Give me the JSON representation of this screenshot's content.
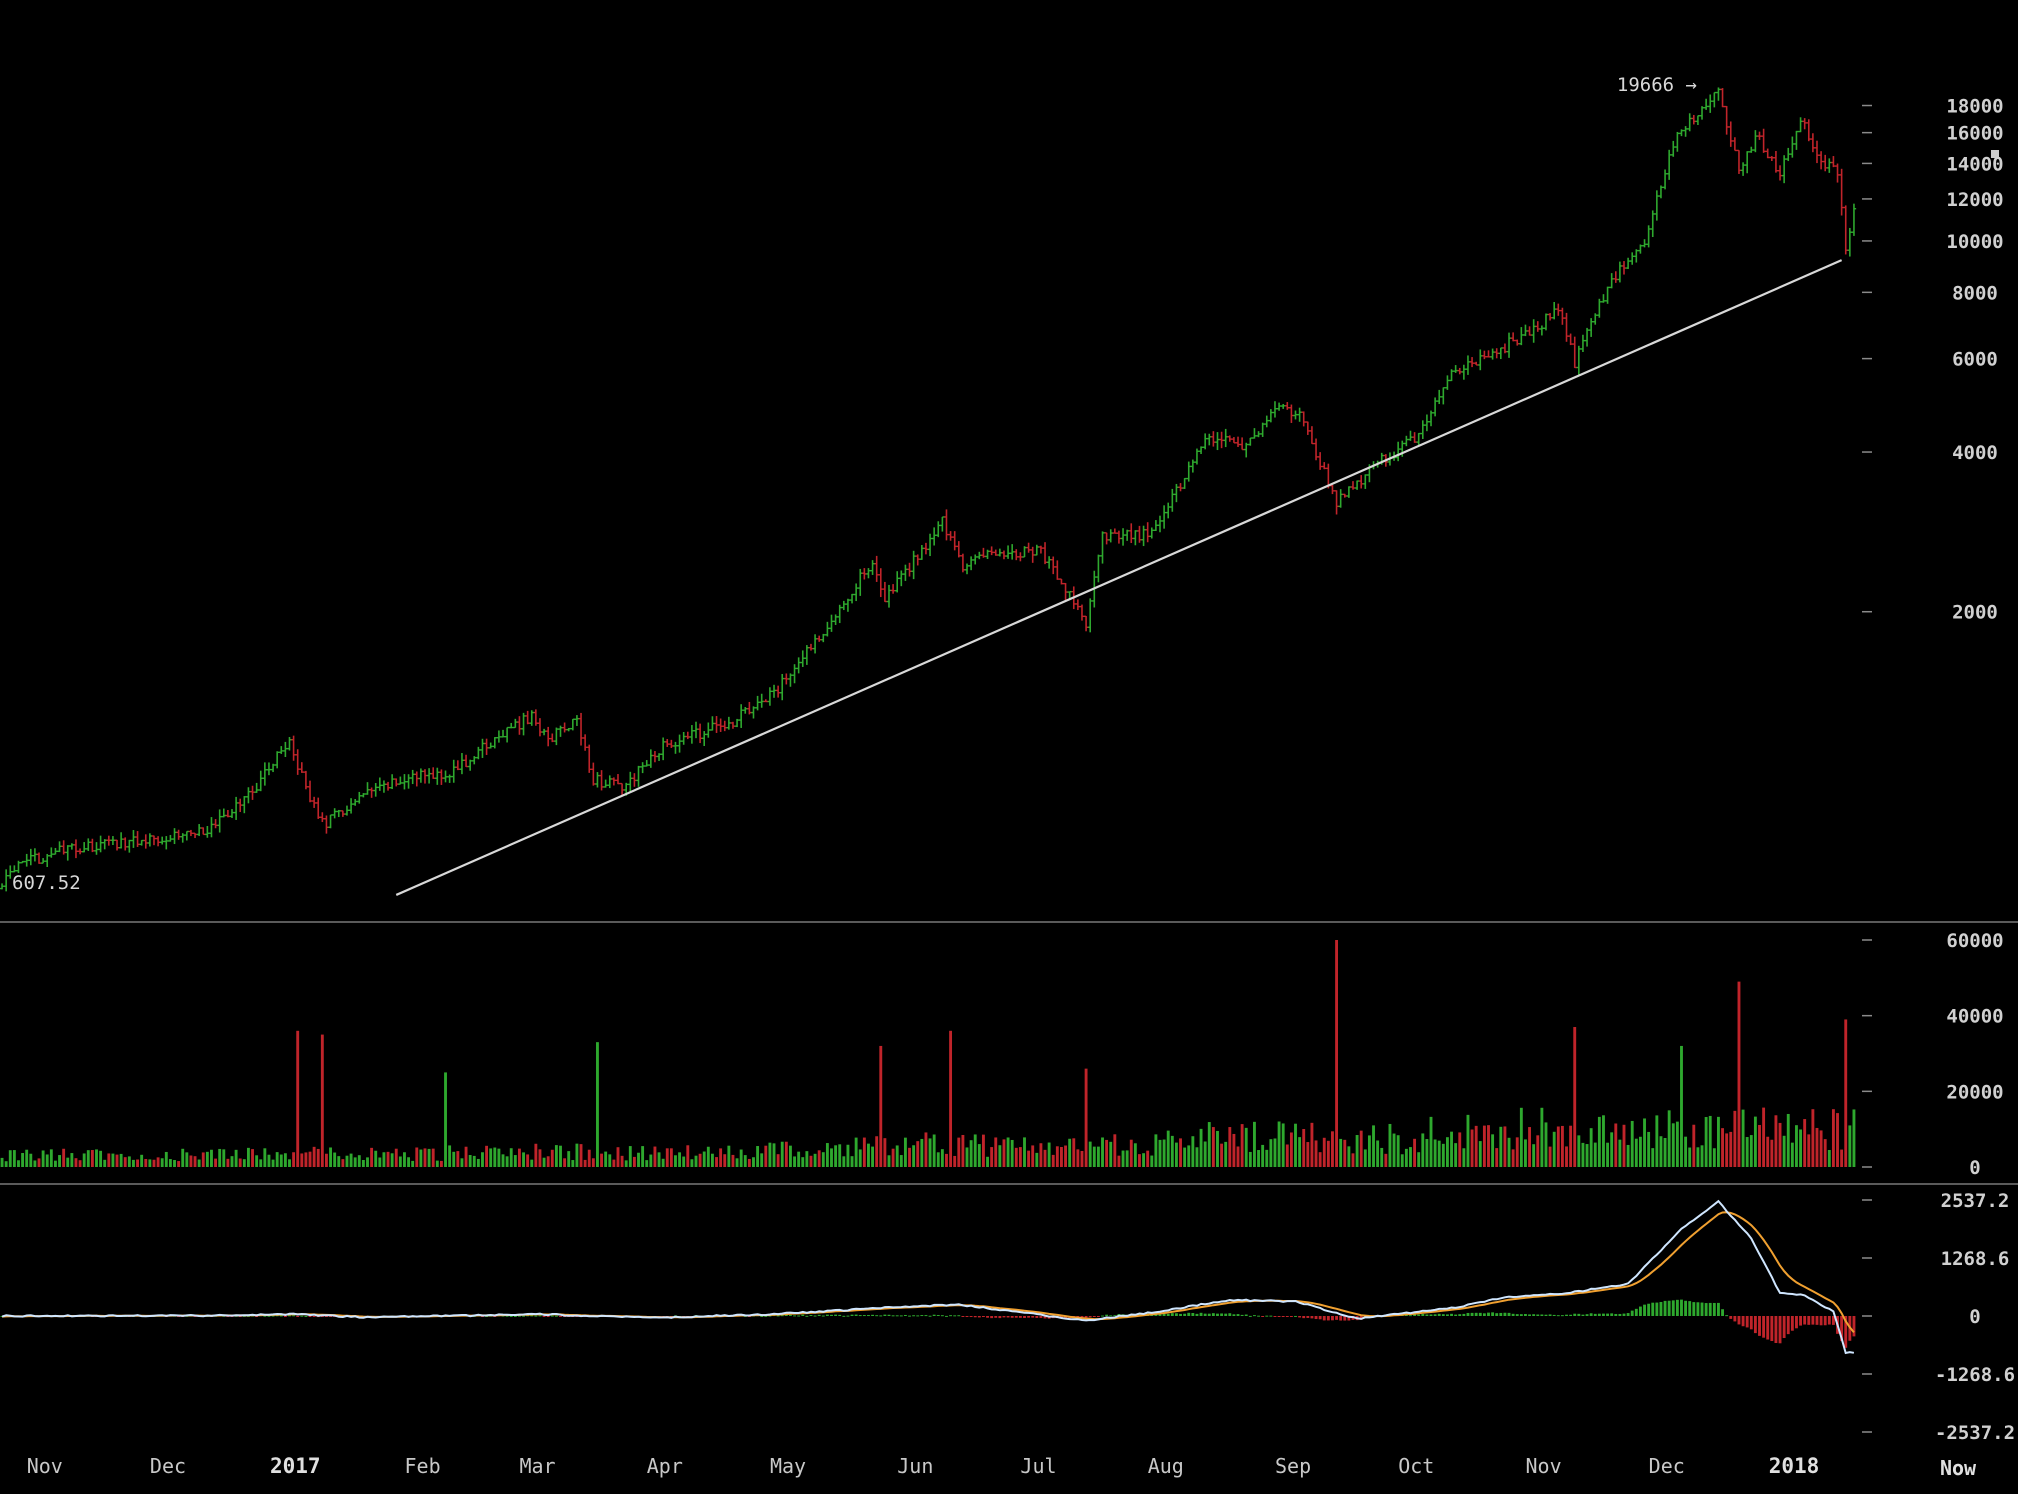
{
  "chart_data": {
    "type": "candlestick",
    "colors": {
      "background": "#000000",
      "up": "#2ea82e",
      "down": "#c0242a",
      "trendline": "#d8d8d8",
      "macd_line": "#cfe6ff",
      "signal_line": "#f0a030",
      "separator": "#5a5a5a",
      "tick": "#8a8a8a"
    },
    "price": {
      "scale": "log",
      "ylim": [
        560,
        21000
      ],
      "ticks": [
        "18000",
        "16000",
        "14000",
        "12000",
        "10000",
        "8000",
        "6000",
        "4000",
        "2000"
      ],
      "high_annotation": "19666 →",
      "start_annotation": "607.52",
      "high_value": 19666,
      "start_value": 607.52,
      "trendline": {
        "from": [
          "2017-01-29",
          585
        ],
        "to": [
          "2018-01-16",
          9200
        ]
      },
      "anchors": [
        [
          "2016-10-25",
          640
        ],
        [
          "2016-11-05",
          700
        ],
        [
          "2016-11-20",
          730
        ],
        [
          "2016-12-01",
          750
        ],
        [
          "2016-12-15",
          780
        ],
        [
          "2016-12-24",
          900
        ],
        [
          "2017-01-03",
          1150
        ],
        [
          "2017-01-08",
          880
        ],
        [
          "2017-01-12",
          800
        ],
        [
          "2017-01-20",
          890
        ],
        [
          "2017-01-31",
          970
        ],
        [
          "2017-02-12",
          1000
        ],
        [
          "2017-02-24",
          1180
        ],
        [
          "2017-03-03",
          1270
        ],
        [
          "2017-03-07",
          1150
        ],
        [
          "2017-03-14",
          1250
        ],
        [
          "2017-03-18",
          970
        ],
        [
          "2017-03-25",
          930
        ],
        [
          "2017-04-05",
          1130
        ],
        [
          "2017-04-20",
          1230
        ],
        [
          "2017-05-01",
          1400
        ],
        [
          "2017-05-12",
          1800
        ],
        [
          "2017-05-25",
          2500
        ],
        [
          "2017-05-28",
          2100
        ],
        [
          "2017-06-11",
          2950
        ],
        [
          "2017-06-16",
          2450
        ],
        [
          "2017-06-25",
          2600
        ],
        [
          "2017-07-05",
          2600
        ],
        [
          "2017-07-16",
          1900
        ],
        [
          "2017-07-20",
          2750
        ],
        [
          "2017-08-01",
          2800
        ],
        [
          "2017-08-13",
          4100
        ],
        [
          "2017-08-17",
          4300
        ],
        [
          "2017-08-24",
          4100
        ],
        [
          "2017-09-01",
          4900
        ],
        [
          "2017-09-07",
          4600
        ],
        [
          "2017-09-15",
          3200
        ],
        [
          "2017-09-25",
          3800
        ],
        [
          "2017-10-05",
          4300
        ],
        [
          "2017-10-13",
          5600
        ],
        [
          "2017-10-20",
          6000
        ],
        [
          "2017-11-01",
          6700
        ],
        [
          "2017-11-08",
          7400
        ],
        [
          "2017-11-12",
          5900
        ],
        [
          "2017-11-20",
          8200
        ],
        [
          "2017-11-29",
          10000
        ],
        [
          "2017-12-07",
          16000
        ],
        [
          "2017-12-17",
          19000
        ],
        [
          "2017-12-22",
          13500
        ],
        [
          "2017-12-26",
          15800
        ],
        [
          "2018-01-01",
          13500
        ],
        [
          "2018-01-06",
          17000
        ],
        [
          "2018-01-12",
          13800
        ],
        [
          "2018-01-15",
          13600
        ],
        [
          "2018-01-17",
          9800
        ],
        [
          "2018-01-19",
          11500
        ]
      ]
    },
    "volume": {
      "ylim": [
        0,
        60000
      ],
      "ticks": [
        "60000",
        "40000",
        "20000",
        "0"
      ],
      "spikes": [
        [
          "2017-01-05",
          36000
        ],
        [
          "2017-01-11",
          35000
        ],
        [
          "2017-02-10",
          25000
        ],
        [
          "2017-03-19",
          33000
        ],
        [
          "2017-05-27",
          32000
        ],
        [
          "2017-06-13",
          36000
        ],
        [
          "2017-07-16",
          26000
        ],
        [
          "2017-09-15",
          60000
        ],
        [
          "2017-11-12",
          37000
        ],
        [
          "2017-12-08",
          32000
        ],
        [
          "2017-12-22",
          49000
        ],
        [
          "2018-01-17",
          39000
        ]
      ]
    },
    "macd": {
      "ylim": [
        -2537.2,
        2537.2
      ],
      "ticks": [
        "2537.2",
        "1268.6",
        "0",
        "-1268.6",
        "-2537.2"
      ],
      "anchors": [
        [
          "2016-10-25",
          0
        ],
        [
          "2016-12-20",
          10
        ],
        [
          "2017-01-05",
          40
        ],
        [
          "2017-01-20",
          -25
        ],
        [
          "2017-02-20",
          15
        ],
        [
          "2017-03-05",
          40
        ],
        [
          "2017-04-01",
          -40
        ],
        [
          "2017-05-01",
          40
        ],
        [
          "2017-06-01",
          200
        ],
        [
          "2017-06-15",
          250
        ],
        [
          "2017-07-16",
          -100
        ],
        [
          "2017-08-01",
          80
        ],
        [
          "2017-08-20",
          350
        ],
        [
          "2017-09-05",
          320
        ],
        [
          "2017-09-20",
          -60
        ],
        [
          "2017-10-15",
          200
        ],
        [
          "2017-10-25",
          400
        ],
        [
          "2017-11-10",
          500
        ],
        [
          "2017-11-25",
          700
        ],
        [
          "2017-12-08",
          1900
        ],
        [
          "2017-12-17",
          2500
        ],
        [
          "2017-12-25",
          1700
        ],
        [
          "2018-01-01",
          500
        ],
        [
          "2018-01-07",
          450
        ],
        [
          "2018-01-14",
          100
        ],
        [
          "2018-01-17",
          -800
        ]
      ]
    },
    "x_axis": {
      "start": "2016-10-25",
      "end": "2018-01-19",
      "now_label": "Now",
      "ticks": [
        {
          "date": "2016-11-01",
          "label": "Nov",
          "year": false
        },
        {
          "date": "2016-12-01",
          "label": "Dec",
          "year": false
        },
        {
          "date": "2017-01-01",
          "label": "2017",
          "year": true
        },
        {
          "date": "2017-02-01",
          "label": "Feb",
          "year": false
        },
        {
          "date": "2017-03-01",
          "label": "Mar",
          "year": false
        },
        {
          "date": "2017-04-01",
          "label": "Apr",
          "year": false
        },
        {
          "date": "2017-05-01",
          "label": "May",
          "year": false
        },
        {
          "date": "2017-06-01",
          "label": "Jun",
          "year": false
        },
        {
          "date": "2017-07-01",
          "label": "Jul",
          "year": false
        },
        {
          "date": "2017-08-01",
          "label": "Aug",
          "year": false
        },
        {
          "date": "2017-09-01",
          "label": "Sep",
          "year": false
        },
        {
          "date": "2017-10-01",
          "label": "Oct",
          "year": false
        },
        {
          "date": "2017-11-01",
          "label": "Nov",
          "year": false
        },
        {
          "date": "2017-12-01",
          "label": "Dec",
          "year": false
        },
        {
          "date": "2018-01-01",
          "label": "2018",
          "year": true
        }
      ]
    }
  }
}
